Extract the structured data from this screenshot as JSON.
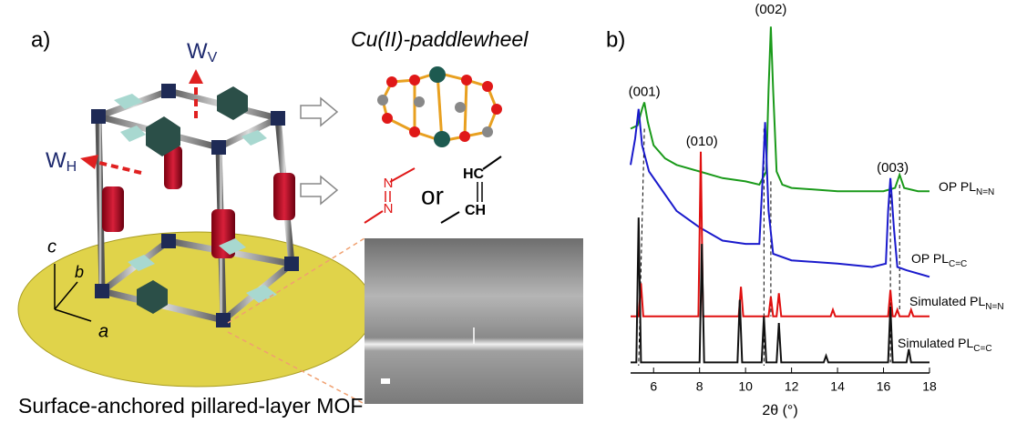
{
  "panel_a": {
    "label": "a)",
    "paddlewheel_title": "Cu(II)-paddlewheel",
    "w_v": {
      "main": "W",
      "sub": "V"
    },
    "w_h": {
      "main": "W",
      "sub": "H"
    },
    "axes": [
      "c",
      "b",
      "a"
    ],
    "linker": {
      "n1": "N",
      "n2": "N",
      "or": "or",
      "hc": "HC",
      "ch": "CH"
    },
    "caption": "Surface-anchored pillared-layer MOF"
  },
  "chart_data": {
    "type": "line",
    "label": "b)",
    "xlabel": "2θ (°)",
    "xlim": [
      5,
      18
    ],
    "xticks": [
      6,
      8,
      10,
      12,
      14,
      16,
      18
    ],
    "ylim": [
      0,
      110
    ],
    "annotations": [
      {
        "text": "(001)",
        "x": 5.6,
        "y": 83
      },
      {
        "text": "(010)",
        "x": 8.1,
        "y": 68
      },
      {
        "text": "(002)",
        "x": 11.1,
        "y": 108
      },
      {
        "text": "(003)",
        "x": 16.4,
        "y": 60
      }
    ],
    "dashed_lines": [
      {
        "x": [
          5.6,
          5.35
        ],
        "y": [
          72,
          0
        ]
      },
      {
        "x": [
          10.8,
          10.8
        ],
        "y": [
          72,
          0
        ]
      },
      {
        "x": [
          11.1,
          11.1
        ],
        "y": [
          56,
          15
        ]
      },
      {
        "x": [
          16.3,
          16.3
        ],
        "y": [
          56,
          1
        ]
      },
      {
        "x": [
          16.7,
          16.7
        ],
        "y": [
          55,
          17
        ]
      }
    ],
    "series": [
      {
        "name": "OP PL",
        "name_subscript": "N=N",
        "color": "#1a9a1a",
        "x": [
          5.0,
          5.3,
          5.5,
          5.6,
          5.75,
          6.0,
          6.5,
          7,
          8,
          9,
          10,
          10.6,
          10.9,
          11.0,
          11.1,
          11.2,
          11.35,
          11.6,
          12,
          14,
          16,
          16.5,
          16.7,
          16.9,
          17.5,
          18
        ],
        "values": [
          72,
          73,
          78,
          80,
          74,
          67,
          63,
          61,
          59,
          57,
          56,
          55,
          59,
          84,
          103,
          84,
          59,
          55,
          54,
          53,
          53,
          54,
          58,
          54,
          53,
          53
        ]
      },
      {
        "name": "OP PL",
        "name_subscript": "C=C",
        "color": "#1a1acc",
        "x": [
          5.0,
          5.2,
          5.35,
          5.5,
          5.8,
          6.2,
          7,
          8,
          9,
          10,
          10.6,
          10.75,
          10.85,
          11.0,
          11.2,
          12,
          14,
          15.5,
          16.1,
          16.2,
          16.3,
          16.45,
          16.6,
          17,
          18
        ],
        "values": [
          61,
          69,
          78,
          67,
          59,
          55,
          47,
          42,
          38,
          37,
          37,
          58,
          74,
          47,
          34,
          32,
          31,
          30,
          31,
          47,
          57,
          42,
          30,
          29,
          27
        ]
      },
      {
        "name": "Simulated PL",
        "name_subscript": "N=N",
        "color": "#e01010",
        "x": [
          5.0,
          5.35,
          5.45,
          5.55,
          7.95,
          8.05,
          8.15,
          9.7,
          9.8,
          9.9,
          11.0,
          11.1,
          11.2,
          11.35,
          11.45,
          11.55,
          13.7,
          13.8,
          13.9,
          16.2,
          16.3,
          16.4,
          16.5,
          16.6,
          16.7,
          17.1,
          17.2,
          17.3,
          18
        ],
        "values": [
          15,
          15,
          25,
          15,
          15,
          65,
          15,
          15,
          24,
          15,
          15,
          21,
          15,
          15,
          22,
          15,
          15,
          17,
          15,
          15,
          23,
          15,
          15,
          17,
          15,
          15,
          17,
          15,
          15
        ]
      },
      {
        "name": "Simulated PL",
        "name_subscript": "C=C",
        "color": "#111111",
        "x": [
          5.0,
          5.25,
          5.35,
          5.45,
          8.0,
          8.1,
          8.2,
          9.65,
          9.75,
          9.85,
          10.7,
          10.8,
          10.9,
          11.35,
          11.45,
          11.55,
          13.4,
          13.5,
          13.6,
          16.2,
          16.3,
          16.4,
          17.0,
          17.1,
          17.2,
          18
        ],
        "values": [
          1,
          1,
          45,
          1,
          1,
          37,
          1,
          1,
          20,
          1,
          1,
          15,
          1,
          1,
          13,
          1,
          1,
          3,
          1,
          1,
          18,
          1,
          1,
          5,
          1,
          1
        ]
      }
    ]
  }
}
